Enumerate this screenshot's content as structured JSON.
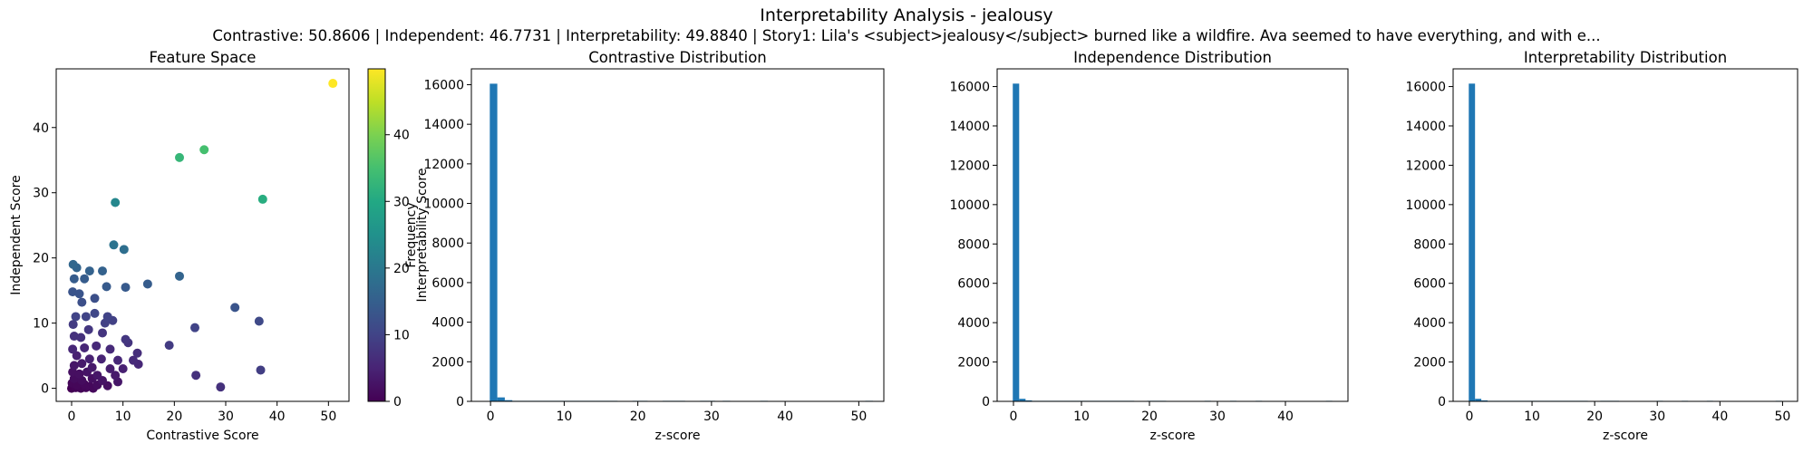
{
  "figure": {
    "title": "Interpretability Analysis - jealousy",
    "subtitle": "Contrastive: 50.8606 | Independent: 46.7731 | Interpretability: 49.8840 | Story1: Lila's <subject>jealousy</subject> burned like a wildfire. Ava seemed to have everything, and with e..."
  },
  "chart_data": [
    {
      "type": "scatter",
      "title": "Feature Space",
      "xlabel": "Contrastive Score",
      "ylabel": "Independent Score",
      "xlim": [
        -3,
        54
      ],
      "ylim": [
        -2,
        49
      ],
      "xticks": [
        0,
        10,
        20,
        30,
        40,
        50
      ],
      "yticks": [
        0,
        10,
        20,
        30,
        40
      ],
      "colorbar": {
        "label": "Interpretability Score",
        "range": [
          0,
          49.884
        ],
        "ticks": [
          0,
          10,
          20,
          30,
          40
        ],
        "colormap": "viridis"
      },
      "grid": false,
      "points": [
        {
          "x": 50.86,
          "y": 46.77,
          "c": 49.88
        },
        {
          "x": 25.8,
          "y": 36.6,
          "c": 35.0
        },
        {
          "x": 21.0,
          "y": 35.4,
          "c": 33.0
        },
        {
          "x": 37.2,
          "y": 29.0,
          "c": 31.0
        },
        {
          "x": 8.5,
          "y": 28.5,
          "c": 23.0
        },
        {
          "x": 8.2,
          "y": 22.0,
          "c": 19.0
        },
        {
          "x": 10.2,
          "y": 21.3,
          "c": 18.0
        },
        {
          "x": 0.3,
          "y": 19.0,
          "c": 16.5
        },
        {
          "x": 1.0,
          "y": 18.5,
          "c": 16.0
        },
        {
          "x": 3.5,
          "y": 18.0,
          "c": 15.5
        },
        {
          "x": 6.0,
          "y": 18.0,
          "c": 15.5
        },
        {
          "x": 21.0,
          "y": 17.2,
          "c": 16.0
        },
        {
          "x": 0.5,
          "y": 16.8,
          "c": 14.5
        },
        {
          "x": 2.5,
          "y": 16.8,
          "c": 14.5
        },
        {
          "x": 14.8,
          "y": 16.0,
          "c": 14.5
        },
        {
          "x": 6.8,
          "y": 15.6,
          "c": 14.0
        },
        {
          "x": 10.5,
          "y": 15.5,
          "c": 14.0
        },
        {
          "x": 0.2,
          "y": 14.8,
          "c": 13.0
        },
        {
          "x": 1.5,
          "y": 14.5,
          "c": 13.0
        },
        {
          "x": 2.0,
          "y": 13.2,
          "c": 12.0
        },
        {
          "x": 4.5,
          "y": 13.8,
          "c": 12.0
        },
        {
          "x": 31.8,
          "y": 12.4,
          "c": 13.0
        },
        {
          "x": 0.8,
          "y": 11.0,
          "c": 10.0
        },
        {
          "x": 2.8,
          "y": 11.0,
          "c": 10.0
        },
        {
          "x": 4.5,
          "y": 11.5,
          "c": 10.5
        },
        {
          "x": 7.0,
          "y": 11.0,
          "c": 10.0
        },
        {
          "x": 6.5,
          "y": 10.0,
          "c": 9.5
        },
        {
          "x": 8.0,
          "y": 10.4,
          "c": 9.5
        },
        {
          "x": 36.5,
          "y": 10.3,
          "c": 11.0
        },
        {
          "x": 0.3,
          "y": 9.8,
          "c": 8.5
        },
        {
          "x": 3.3,
          "y": 9.0,
          "c": 8.0
        },
        {
          "x": 24.0,
          "y": 9.3,
          "c": 10.0
        },
        {
          "x": 6.0,
          "y": 8.5,
          "c": 7.5
        },
        {
          "x": 0.5,
          "y": 8.0,
          "c": 7.0
        },
        {
          "x": 1.8,
          "y": 7.8,
          "c": 7.0
        },
        {
          "x": 10.5,
          "y": 7.5,
          "c": 8.0
        },
        {
          "x": 11.0,
          "y": 7.0,
          "c": 7.5
        },
        {
          "x": 19.0,
          "y": 6.6,
          "c": 8.5
        },
        {
          "x": 0.2,
          "y": 6.0,
          "c": 5.5
        },
        {
          "x": 2.5,
          "y": 6.2,
          "c": 5.5
        },
        {
          "x": 4.8,
          "y": 6.5,
          "c": 6.0
        },
        {
          "x": 7.5,
          "y": 6.0,
          "c": 6.0
        },
        {
          "x": 12.8,
          "y": 5.4,
          "c": 6.5
        },
        {
          "x": 1.0,
          "y": 5.0,
          "c": 4.5
        },
        {
          "x": 3.5,
          "y": 4.5,
          "c": 4.5
        },
        {
          "x": 5.8,
          "y": 4.5,
          "c": 5.0
        },
        {
          "x": 9.0,
          "y": 4.3,
          "c": 5.5
        },
        {
          "x": 12.0,
          "y": 4.3,
          "c": 6.0
        },
        {
          "x": 13.0,
          "y": 3.7,
          "c": 5.5
        },
        {
          "x": 0.5,
          "y": 3.5,
          "c": 3.0
        },
        {
          "x": 2.0,
          "y": 3.8,
          "c": 3.5
        },
        {
          "x": 4.0,
          "y": 3.2,
          "c": 3.5
        },
        {
          "x": 7.5,
          "y": 3.0,
          "c": 4.0
        },
        {
          "x": 10.0,
          "y": 3.0,
          "c": 4.5
        },
        {
          "x": 36.8,
          "y": 2.8,
          "c": 9.0
        },
        {
          "x": 0.2,
          "y": 2.5,
          "c": 2.0
        },
        {
          "x": 1.5,
          "y": 2.2,
          "c": 2.0
        },
        {
          "x": 3.0,
          "y": 2.5,
          "c": 2.5
        },
        {
          "x": 5.0,
          "y": 2.0,
          "c": 3.0
        },
        {
          "x": 8.5,
          "y": 2.0,
          "c": 3.5
        },
        {
          "x": 24.2,
          "y": 2.0,
          "c": 7.0
        },
        {
          "x": 0.5,
          "y": 1.5,
          "c": 1.5
        },
        {
          "x": 2.0,
          "y": 1.2,
          "c": 1.5
        },
        {
          "x": 4.0,
          "y": 1.5,
          "c": 2.0
        },
        {
          "x": 6.0,
          "y": 1.2,
          "c": 2.5
        },
        {
          "x": 9.0,
          "y": 1.0,
          "c": 3.0
        },
        {
          "x": 0.1,
          "y": 0.8,
          "c": 0.8
        },
        {
          "x": 1.0,
          "y": 0.5,
          "c": 0.8
        },
        {
          "x": 2.5,
          "y": 0.6,
          "c": 1.0
        },
        {
          "x": 3.5,
          "y": 0.3,
          "c": 1.0
        },
        {
          "x": 5.0,
          "y": 0.5,
          "c": 1.5
        },
        {
          "x": 7.0,
          "y": 0.4,
          "c": 2.0
        },
        {
          "x": 0.0,
          "y": 0.0,
          "c": 0.0
        },
        {
          "x": 0.8,
          "y": 0.1,
          "c": 0.3
        },
        {
          "x": 1.8,
          "y": 0.0,
          "c": 0.5
        },
        {
          "x": 2.8,
          "y": 0.1,
          "c": 0.7
        },
        {
          "x": 4.2,
          "y": 0.0,
          "c": 1.0
        },
        {
          "x": 29.0,
          "y": 0.2,
          "c": 7.0
        }
      ]
    },
    {
      "type": "histogram",
      "title": "Contrastive Distribution",
      "xlabel": "z-score",
      "ylabel": "Frequency",
      "xlim": [
        -2.6,
        53.4
      ],
      "ylim": [
        0,
        16800
      ],
      "xticks": [
        0,
        10,
        20,
        30,
        40,
        50
      ],
      "yticks": [
        0,
        2000,
        4000,
        6000,
        8000,
        10000,
        12000,
        14000,
        16000
      ],
      "bin_start": -0.1,
      "bin_width": 1.02,
      "counts": [
        16050,
        200,
        60,
        25,
        12,
        8,
        5,
        3,
        2,
        2,
        1,
        1,
        1,
        1,
        1,
        1,
        1,
        0,
        0,
        1,
        1,
        0,
        0,
        1,
        1,
        1,
        0,
        0,
        1,
        1,
        0,
        1,
        0,
        0,
        0,
        0,
        1,
        0,
        0,
        0,
        0,
        0,
        0,
        0,
        0,
        0,
        0,
        0,
        0,
        0,
        1
      ],
      "color": "#1f77b4"
    },
    {
      "type": "histogram",
      "title": "Independence Distribution",
      "xlabel": "z-score",
      "ylabel": "",
      "xlim": [
        -2.4,
        49.2
      ],
      "ylim": [
        0,
        16900
      ],
      "xticks": [
        0,
        10,
        20,
        30,
        40
      ],
      "yticks": [
        0,
        2000,
        4000,
        6000,
        8000,
        10000,
        12000,
        14000,
        16000
      ],
      "bin_start": -0.1,
      "bin_width": 0.94,
      "counts": [
        16150,
        130,
        50,
        20,
        10,
        6,
        4,
        3,
        2,
        2,
        1,
        1,
        1,
        1,
        1,
        1,
        1,
        1,
        1,
        0,
        0,
        1,
        1,
        1,
        0,
        0,
        0,
        0,
        0,
        0,
        1,
        0,
        0,
        0,
        1,
        0,
        0,
        0,
        1,
        0,
        0,
        0,
        0,
        0,
        0,
        0,
        0,
        0,
        0,
        1
      ],
      "color": "#1f77b4"
    },
    {
      "type": "histogram",
      "title": "Interpretability Distribution",
      "xlabel": "z-score",
      "ylabel": "",
      "xlim": [
        -2.6,
        52.4
      ],
      "ylim": [
        0,
        16900
      ],
      "xticks": [
        0,
        10,
        20,
        30,
        40,
        50
      ],
      "yticks": [
        0,
        2000,
        4000,
        6000,
        8000,
        10000,
        12000,
        14000,
        16000
      ],
      "bin_start": -0.1,
      "bin_width": 1.0,
      "counts": [
        16150,
        130,
        50,
        20,
        10,
        6,
        4,
        3,
        2,
        2,
        1,
        1,
        1,
        1,
        1,
        1,
        1,
        1,
        1,
        0,
        0,
        1,
        1,
        1,
        0,
        0,
        0,
        0,
        0,
        0,
        1,
        0,
        0,
        0,
        1,
        0,
        0,
        0,
        1,
        0,
        0,
        0,
        0,
        0,
        0,
        0,
        0,
        0,
        0,
        1
      ],
      "color": "#1f77b4"
    }
  ]
}
